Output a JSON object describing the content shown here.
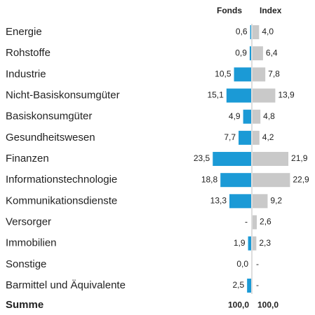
{
  "chart_data": {
    "type": "butterfly",
    "categories": [
      "Energie",
      "Rohstoffe",
      "Industrie",
      "Nicht-Basiskonsumgüter",
      "Basiskonsumgüter",
      "Gesundheitswesen",
      "Finanzen",
      "Informationstechnologie",
      "Kommunikationsdienste",
      "Versorger",
      "Immobilien",
      "Sonstige",
      "Barmittel und Äquivalente"
    ],
    "series": [
      {
        "name": "Fonds",
        "color": "#1b9ad6",
        "values": [
          0.6,
          0.9,
          10.5,
          15.1,
          4.9,
          7.7,
          23.5,
          18.8,
          13.3,
          null,
          1.9,
          0.0,
          2.5
        ],
        "value_labels": [
          "0,6",
          "0,9",
          "10,5",
          "15,1",
          "4,9",
          "7,7",
          "23,5",
          "18,8",
          "13,3",
          "-",
          "1,9",
          "0,0",
          "2,5"
        ],
        "total": 100.0,
        "total_label": "100,0"
      },
      {
        "name": "Index",
        "color": "#c9c9c9",
        "values": [
          4.0,
          6.4,
          7.8,
          13.9,
          4.8,
          4.2,
          21.9,
          22.9,
          9.2,
          2.6,
          2.3,
          null,
          null
        ],
        "value_labels": [
          "4,0",
          "6,4",
          "7,8",
          "13,9",
          "4,8",
          "4,2",
          "21,9",
          "22,9",
          "9,2",
          "2,6",
          "2,3",
          "-",
          "-"
        ],
        "total": 100.0,
        "total_label": "100,0"
      }
    ],
    "total_name": "Summe"
  }
}
